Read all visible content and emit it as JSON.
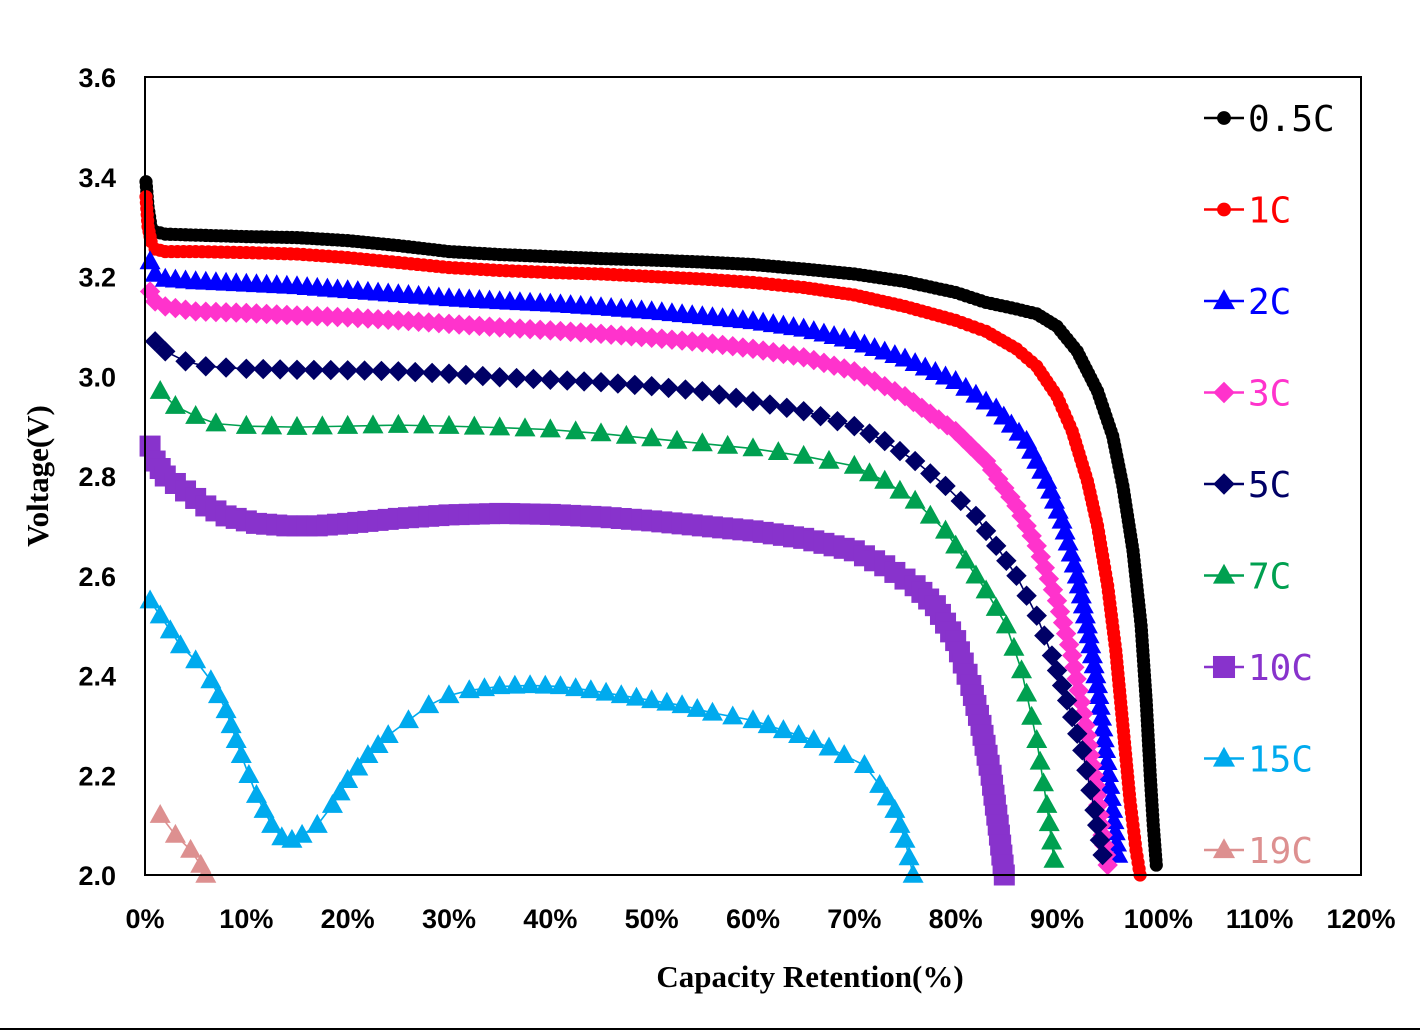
{
  "chart_data": {
    "type": "scatter",
    "title": "",
    "xlabel": "Capacity Retention(%)",
    "ylabel": "Voltage(V)",
    "xlim": [
      0,
      120
    ],
    "ylim": [
      2.0,
      3.6
    ],
    "x_ticks": [
      "0%",
      "10%",
      "20%",
      "30%",
      "40%",
      "50%",
      "60%",
      "70%",
      "80%",
      "90%",
      "100%",
      "110%",
      "120%"
    ],
    "y_ticks": [
      "2.0",
      "2.2",
      "2.4",
      "2.6",
      "2.8",
      "3.0",
      "3.2",
      "3.4",
      "3.6"
    ],
    "grid": false,
    "legend_position": "right",
    "series": [
      {
        "name": "0.5C",
        "color": "#000000",
        "marker": "circle",
        "points": [
          [
            0.1,
            3.39
          ],
          [
            0.3,
            3.34
          ],
          [
            0.6,
            3.3
          ],
          [
            1,
            3.29
          ],
          [
            2,
            3.285
          ],
          [
            5,
            3.283
          ],
          [
            10,
            3.28
          ],
          [
            15,
            3.278
          ],
          [
            20,
            3.272
          ],
          [
            25,
            3.262
          ],
          [
            30,
            3.25
          ],
          [
            35,
            3.244
          ],
          [
            40,
            3.24
          ],
          [
            45,
            3.236
          ],
          [
            50,
            3.233
          ],
          [
            55,
            3.229
          ],
          [
            60,
            3.224
          ],
          [
            65,
            3.215
          ],
          [
            70,
            3.205
          ],
          [
            75,
            3.19
          ],
          [
            80,
            3.168
          ],
          [
            83,
            3.148
          ],
          [
            86,
            3.135
          ],
          [
            88,
            3.125
          ],
          [
            90,
            3.1
          ],
          [
            92,
            3.05
          ],
          [
            94,
            2.97
          ],
          [
            95.5,
            2.88
          ],
          [
            96.5,
            2.78
          ],
          [
            97.5,
            2.65
          ],
          [
            98.3,
            2.5
          ],
          [
            98.8,
            2.35
          ],
          [
            99.2,
            2.2
          ],
          [
            99.5,
            2.1
          ],
          [
            99.8,
            2.02
          ]
        ]
      },
      {
        "name": "1C",
        "color": "#ff0000",
        "marker": "circle",
        "points": [
          [
            0.1,
            3.36
          ],
          [
            0.3,
            3.3
          ],
          [
            0.6,
            3.27
          ],
          [
            1,
            3.255
          ],
          [
            2,
            3.25
          ],
          [
            5,
            3.25
          ],
          [
            10,
            3.248
          ],
          [
            15,
            3.245
          ],
          [
            20,
            3.238
          ],
          [
            25,
            3.228
          ],
          [
            30,
            3.218
          ],
          [
            35,
            3.212
          ],
          [
            40,
            3.208
          ],
          [
            45,
            3.205
          ],
          [
            50,
            3.2
          ],
          [
            55,
            3.195
          ],
          [
            60,
            3.188
          ],
          [
            65,
            3.178
          ],
          [
            70,
            3.163
          ],
          [
            75,
            3.14
          ],
          [
            80,
            3.112
          ],
          [
            83,
            3.09
          ],
          [
            86,
            3.055
          ],
          [
            88,
            3.02
          ],
          [
            90,
            2.96
          ],
          [
            91.5,
            2.89
          ],
          [
            93,
            2.79
          ],
          [
            94,
            2.7
          ],
          [
            95,
            2.58
          ],
          [
            95.8,
            2.45
          ],
          [
            96.5,
            2.3
          ],
          [
            97.2,
            2.15
          ],
          [
            97.8,
            2.05
          ],
          [
            98.2,
            2.0
          ]
        ]
      },
      {
        "name": "2C",
        "color": "#0000ff",
        "marker": "triangle",
        "points": [
          [
            0.5,
            3.23
          ],
          [
            1,
            3.205
          ],
          [
            2,
            3.195
          ],
          [
            5,
            3.19
          ],
          [
            10,
            3.185
          ],
          [
            15,
            3.18
          ],
          [
            20,
            3.172
          ],
          [
            25,
            3.164
          ],
          [
            30,
            3.156
          ],
          [
            35,
            3.15
          ],
          [
            40,
            3.145
          ],
          [
            45,
            3.138
          ],
          [
            50,
            3.13
          ],
          [
            55,
            3.12
          ],
          [
            60,
            3.11
          ],
          [
            65,
            3.095
          ],
          [
            70,
            3.07
          ],
          [
            75,
            3.035
          ],
          [
            80,
            2.99
          ],
          [
            84,
            2.935
          ],
          [
            87,
            2.87
          ],
          [
            89,
            2.79
          ],
          [
            90.5,
            2.71
          ],
          [
            92,
            2.6
          ],
          [
            93,
            2.5
          ],
          [
            94,
            2.38
          ],
          [
            94.8,
            2.25
          ],
          [
            95.5,
            2.13
          ],
          [
            96,
            2.04
          ]
        ]
      },
      {
        "name": "3C",
        "color": "#ff33cc",
        "marker": "diamond",
        "points": [
          [
            0.5,
            3.17
          ],
          [
            1,
            3.15
          ],
          [
            2,
            3.14
          ],
          [
            5,
            3.13
          ],
          [
            10,
            3.127
          ],
          [
            15,
            3.122
          ],
          [
            20,
            3.118
          ],
          [
            25,
            3.112
          ],
          [
            30,
            3.105
          ],
          [
            35,
            3.098
          ],
          [
            40,
            3.092
          ],
          [
            45,
            3.085
          ],
          [
            50,
            3.077
          ],
          [
            55,
            3.068
          ],
          [
            60,
            3.055
          ],
          [
            65,
            3.038
          ],
          [
            70,
            3.01
          ],
          [
            75,
            2.96
          ],
          [
            80,
            2.89
          ],
          [
            83,
            2.83
          ],
          [
            86,
            2.74
          ],
          [
            88,
            2.66
          ],
          [
            90,
            2.55
          ],
          [
            91.5,
            2.44
          ],
          [
            92.8,
            2.3
          ],
          [
            93.8,
            2.18
          ],
          [
            94.5,
            2.08
          ],
          [
            95,
            2.02
          ]
        ]
      },
      {
        "name": "5C",
        "color": "#000066",
        "marker": "diamond",
        "points": [
          [
            1,
            3.07
          ],
          [
            2,
            3.05
          ],
          [
            4,
            3.03
          ],
          [
            6,
            3.02
          ],
          [
            10,
            3.015
          ],
          [
            15,
            3.013
          ],
          [
            20,
            3.012
          ],
          [
            25,
            3.01
          ],
          [
            30,
            3.005
          ],
          [
            35,
            2.998
          ],
          [
            40,
            2.993
          ],
          [
            45,
            2.988
          ],
          [
            50,
            2.98
          ],
          [
            55,
            2.97
          ],
          [
            60,
            2.95
          ],
          [
            65,
            2.93
          ],
          [
            70,
            2.9
          ],
          [
            73,
            2.87
          ],
          [
            76,
            2.83
          ],
          [
            79,
            2.78
          ],
          [
            82,
            2.72
          ],
          [
            84,
            2.66
          ],
          [
            86,
            2.6
          ],
          [
            88,
            2.52
          ],
          [
            89.5,
            2.44
          ],
          [
            91,
            2.35
          ],
          [
            92.5,
            2.25
          ],
          [
            93.7,
            2.13
          ],
          [
            94.5,
            2.04
          ]
        ]
      },
      {
        "name": "7C",
        "color": "#00a050",
        "marker": "triangle",
        "points": [
          [
            1.5,
            2.97
          ],
          [
            3,
            2.94
          ],
          [
            5,
            2.92
          ],
          [
            7,
            2.905
          ],
          [
            10,
            2.9
          ],
          [
            15,
            2.898
          ],
          [
            20,
            2.9
          ],
          [
            25,
            2.902
          ],
          [
            30,
            2.9
          ],
          [
            35,
            2.897
          ],
          [
            40,
            2.893
          ],
          [
            45,
            2.885
          ],
          [
            50,
            2.875
          ],
          [
            55,
            2.865
          ],
          [
            60,
            2.855
          ],
          [
            65,
            2.84
          ],
          [
            70,
            2.82
          ],
          [
            73,
            2.79
          ],
          [
            76,
            2.75
          ],
          [
            79,
            2.69
          ],
          [
            81,
            2.63
          ],
          [
            83,
            2.57
          ],
          [
            85,
            2.5
          ],
          [
            86.5,
            2.41
          ],
          [
            88,
            2.27
          ],
          [
            89,
            2.14
          ],
          [
            89.7,
            2.03
          ]
        ]
      },
      {
        "name": "10C",
        "color": "#8833cc",
        "marker": "square",
        "points": [
          [
            0.5,
            2.86
          ],
          [
            1,
            2.83
          ],
          [
            2,
            2.8
          ],
          [
            4,
            2.77
          ],
          [
            6,
            2.74
          ],
          [
            8,
            2.72
          ],
          [
            11,
            2.705
          ],
          [
            14,
            2.7
          ],
          [
            17,
            2.7
          ],
          [
            20,
            2.705
          ],
          [
            25,
            2.715
          ],
          [
            30,
            2.722
          ],
          [
            35,
            2.725
          ],
          [
            40,
            2.723
          ],
          [
            45,
            2.718
          ],
          [
            50,
            2.71
          ],
          [
            55,
            2.7
          ],
          [
            60,
            2.69
          ],
          [
            65,
            2.675
          ],
          [
            70,
            2.65
          ],
          [
            73,
            2.62
          ],
          [
            76,
            2.58
          ],
          [
            78,
            2.54
          ],
          [
            80,
            2.47
          ],
          [
            81.5,
            2.38
          ],
          [
            82.5,
            2.3
          ],
          [
            83.5,
            2.2
          ],
          [
            84.2,
            2.1
          ],
          [
            84.8,
            2.0
          ]
        ]
      },
      {
        "name": "15C",
        "color": "#00aaee",
        "marker": "triangle",
        "points": [
          [
            0.5,
            2.55
          ],
          [
            1.5,
            2.52
          ],
          [
            2.5,
            2.49
          ],
          [
            3.5,
            2.46
          ],
          [
            5,
            2.43
          ],
          [
            6.5,
            2.39
          ],
          [
            8,
            2.33
          ],
          [
            9.5,
            2.24
          ],
          [
            11,
            2.16
          ],
          [
            12.5,
            2.1
          ],
          [
            13.5,
            2.075
          ],
          [
            14.5,
            2.07
          ],
          [
            15.5,
            2.08
          ],
          [
            17,
            2.1
          ],
          [
            18.5,
            2.14
          ],
          [
            20,
            2.19
          ],
          [
            22,
            2.24
          ],
          [
            24,
            2.28
          ],
          [
            26,
            2.31
          ],
          [
            28,
            2.34
          ],
          [
            30,
            2.36
          ],
          [
            32,
            2.37
          ],
          [
            35,
            2.378
          ],
          [
            38,
            2.38
          ],
          [
            41,
            2.378
          ],
          [
            44,
            2.37
          ],
          [
            47,
            2.36
          ],
          [
            50,
            2.35
          ],
          [
            53,
            2.34
          ],
          [
            56,
            2.325
          ],
          [
            60,
            2.31
          ],
          [
            63,
            2.29
          ],
          [
            66,
            2.27
          ],
          [
            69,
            2.24
          ],
          [
            71,
            2.22
          ],
          [
            72.5,
            2.18
          ],
          [
            74,
            2.13
          ],
          [
            75,
            2.07
          ],
          [
            75.8,
            2.0
          ]
        ]
      },
      {
        "name": "19C",
        "color": "#dd9090",
        "marker": "triangle",
        "points": [
          [
            1.5,
            2.12
          ],
          [
            3,
            2.08
          ],
          [
            4.5,
            2.05
          ],
          [
            5.5,
            2.02
          ],
          [
            6,
            2.0
          ]
        ]
      }
    ]
  }
}
